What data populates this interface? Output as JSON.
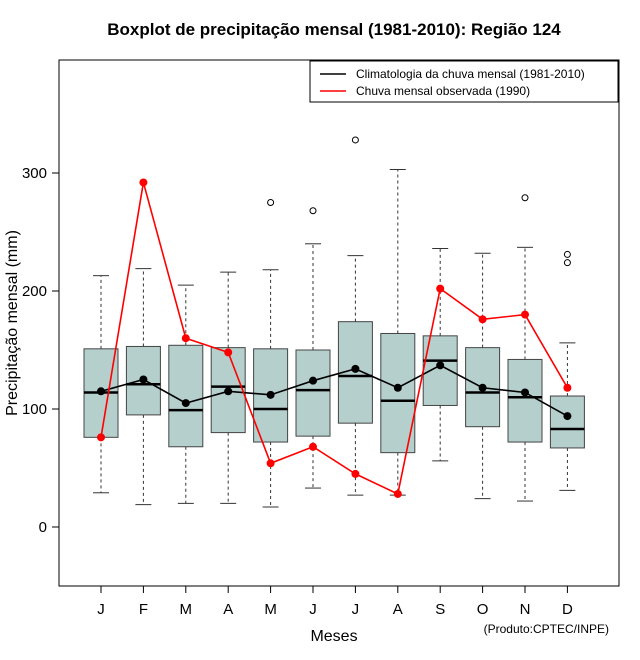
{
  "chart_data": {
    "type": "boxplot",
    "title": "Boxplot de precipitação mensal (1981-2010): Região 124",
    "xlabel": "Meses",
    "ylabel": "Precipitação mensal (mm)",
    "ylim": [
      -50,
      395
    ],
    "yticks": [
      0,
      100,
      200,
      300
    ],
    "categories": [
      "J",
      "F",
      "M",
      "A",
      "M",
      "J",
      "J",
      "A",
      "S",
      "O",
      "N",
      "D"
    ],
    "boxes": [
      {
        "whisker_low": 29,
        "q1": 76,
        "median": 114,
        "q3": 151,
        "whisker_high": 213,
        "outliers": []
      },
      {
        "whisker_low": 19,
        "q1": 95,
        "median": 121,
        "q3": 153,
        "whisker_high": 219,
        "outliers": []
      },
      {
        "whisker_low": 20,
        "q1": 68,
        "median": 99,
        "q3": 154,
        "whisker_high": 205,
        "outliers": []
      },
      {
        "whisker_low": 20,
        "q1": 80,
        "median": 119,
        "q3": 152,
        "whisker_high": 216,
        "outliers": []
      },
      {
        "whisker_low": 17,
        "q1": 72,
        "median": 100,
        "q3": 151,
        "whisker_high": 218,
        "outliers": [
          275
        ]
      },
      {
        "whisker_low": 33,
        "q1": 77,
        "median": 116,
        "q3": 150,
        "whisker_high": 240,
        "outliers": [
          268
        ]
      },
      {
        "whisker_low": 27,
        "q1": 88,
        "median": 128,
        "q3": 174,
        "whisker_high": 230,
        "outliers": [
          328
        ]
      },
      {
        "whisker_low": 27,
        "q1": 63,
        "median": 107,
        "q3": 164,
        "whisker_high": 303,
        "outliers": []
      },
      {
        "whisker_low": 56,
        "q1": 103,
        "median": 141,
        "q3": 162,
        "whisker_high": 236,
        "outliers": []
      },
      {
        "whisker_low": 24,
        "q1": 85,
        "median": 114,
        "q3": 152,
        "whisker_high": 232,
        "outliers": []
      },
      {
        "whisker_low": 22,
        "q1": 72,
        "median": 110,
        "q3": 142,
        "whisker_high": 237,
        "outliers": [
          279
        ]
      },
      {
        "whisker_low": 31,
        "q1": 67,
        "median": 83,
        "q3": 111,
        "whisker_high": 156,
        "outliers": [
          224,
          231
        ]
      }
    ],
    "series": [
      {
        "name": "Climatologia da chuva mensal (1981-2010)",
        "color": "#000000",
        "values": [
          115,
          125,
          105,
          115,
          112,
          124,
          134,
          118,
          137,
          118,
          114,
          94
        ]
      },
      {
        "name": "Chuva mensal observada (1990)",
        "color": "#ff0000",
        "values": [
          76,
          292,
          160,
          148,
          54,
          68,
          45,
          28,
          202,
          176,
          180,
          118
        ]
      }
    ],
    "colors": {
      "box_fill": "#b5cfcd",
      "box_stroke": "#444444"
    },
    "credit": "(Produto:CPTEC/INPE)"
  }
}
